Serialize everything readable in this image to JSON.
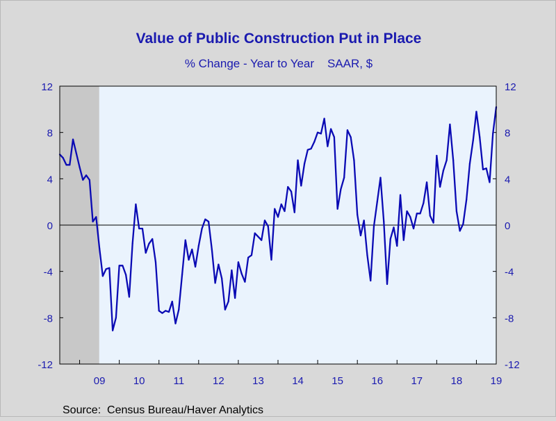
{
  "chart_data": {
    "type": "line",
    "title": "Value of Public Construction Put in Place",
    "subtitle": "% Change - Year to Year    SAAR, $",
    "source": "Source:  Census Bureau/Haver Analytics",
    "ylim": [
      -12,
      12
    ],
    "y_ticks": [
      "12",
      "8",
      "4",
      "0",
      "-4",
      "-8",
      "-12"
    ],
    "x_ticks": [
      "09",
      "10",
      "11",
      "12",
      "13",
      "14",
      "15",
      "16",
      "17",
      "18",
      "19"
    ],
    "x_start": "2008-07",
    "recession": {
      "start": "2008-07",
      "end": "2009-06"
    },
    "colors": {
      "line": "#0a0ab4",
      "text": "#1a1aaf",
      "plot_bg": "#eaf3fd",
      "recession": "#c8c8c8",
      "page_bg": "#d9d9d9"
    },
    "series": [
      {
        "values": [
          6.1,
          5.8,
          5.2,
          5.2,
          7.4,
          6.2,
          5.0,
          3.9,
          4.3,
          3.9,
          0.3,
          0.7,
          -2.0,
          -4.4,
          -3.8,
          -3.7,
          -9.1,
          -8.0,
          -3.5,
          -3.5,
          -4.3,
          -6.2,
          -1.6,
          1.8,
          -0.3,
          -0.3,
          -2.4,
          -1.6,
          -1.2,
          -3.2,
          -7.4,
          -7.6,
          -7.4,
          -7.5,
          -6.6,
          -8.5,
          -7.3,
          -4.3,
          -1.3,
          -3.0,
          -2.1,
          -3.6,
          -1.8,
          -0.3,
          0.5,
          0.3,
          -2.1,
          -5.0,
          -3.4,
          -4.6,
          -7.3,
          -6.6,
          -3.9,
          -6.3,
          -3.2,
          -4.2,
          -4.9,
          -2.8,
          -2.6,
          -0.7,
          -1.0,
          -1.3,
          0.4,
          -0.1,
          -3.0,
          1.4,
          0.7,
          1.8,
          1.2,
          3.3,
          2.9,
          1.1,
          5.6,
          3.4,
          5.3,
          6.5,
          6.6,
          7.2,
          8.0,
          7.9,
          9.2,
          6.8,
          8.3,
          7.6,
          1.4,
          3.1,
          4.1,
          8.2,
          7.6,
          5.6,
          0.9,
          -0.9,
          0.4,
          -2.6,
          -4.8,
          -0.1,
          2.0,
          4.1,
          0.3,
          -5.1,
          -1.2,
          -0.2,
          -1.8,
          2.6,
          -1.3,
          1.2,
          0.7,
          -0.3,
          1.0,
          1.0,
          1.9,
          3.7,
          0.8,
          0.2,
          6.0,
          3.3,
          4.7,
          5.6,
          8.7,
          5.6,
          1.2,
          -0.5,
          0.1,
          2.2,
          5.3,
          7.3,
          9.8,
          7.6,
          4.8,
          4.9,
          3.7,
          7.9,
          10.2
        ]
      }
    ]
  }
}
